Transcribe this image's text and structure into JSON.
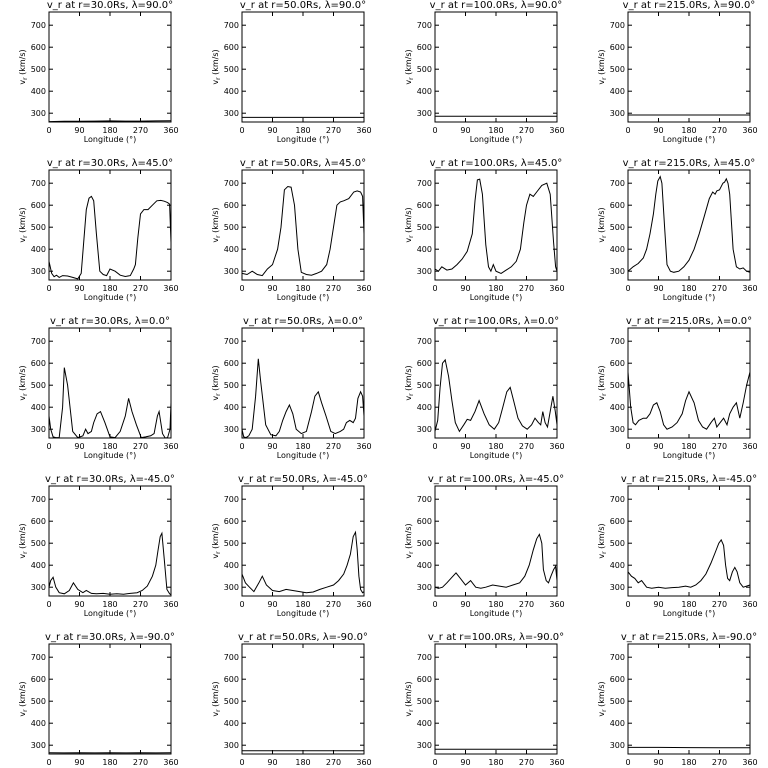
{
  "figure": {
    "xlabel": "Longitude (°)",
    "ylabel": "v",
    "ylabel_sub": "r",
    "ylabel_units": "(km/s)",
    "xticks": [
      "0",
      "90",
      "180",
      "270",
      "360"
    ],
    "yticks": [
      "300",
      "400",
      "500",
      "600",
      "700"
    ]
  },
  "chart_data": [
    {
      "type": "line",
      "title": "v_r at r=30.0Rs, λ=90.0°",
      "ylim": [
        260,
        760
      ],
      "xlim": [
        0,
        360
      ],
      "x": [
        0,
        45,
        90,
        135,
        180,
        225,
        270,
        315,
        360
      ],
      "values": [
        262,
        263,
        263,
        264,
        265,
        264,
        264,
        265,
        266
      ]
    },
    {
      "type": "line",
      "title": "v_r at r=50.0Rs, λ=90.0°",
      "ylim": [
        260,
        760
      ],
      "xlim": [
        0,
        360
      ],
      "x": [
        0,
        90,
        180,
        270,
        360
      ],
      "values": [
        281,
        281,
        281,
        281,
        281
      ]
    },
    {
      "type": "line",
      "title": "v_r at r=100.0Rs, λ=90.0°",
      "ylim": [
        260,
        760
      ],
      "xlim": [
        0,
        360
      ],
      "x": [
        0,
        90,
        180,
        270,
        360
      ],
      "values": [
        286,
        286,
        286,
        286,
        286
      ]
    },
    {
      "type": "line",
      "title": "v_r at r=215.0Rs, λ=90.0°",
      "ylim": [
        260,
        760
      ],
      "xlim": [
        0,
        360
      ],
      "x": [
        0,
        90,
        180,
        270,
        360
      ],
      "values": [
        292,
        292,
        292,
        292,
        292
      ]
    },
    {
      "type": "line",
      "title": "v_r at r=30.0Rs, λ=45.0°",
      "ylim": [
        260,
        760
      ],
      "xlim": [
        0,
        360
      ],
      "x": [
        0,
        8,
        15,
        22,
        30,
        40,
        55,
        70,
        85,
        95,
        110,
        118,
        125,
        132,
        140,
        150,
        160,
        170,
        180,
        195,
        210,
        225,
        240,
        250,
        255,
        262,
        270,
        280,
        292,
        305,
        318,
        330,
        340,
        350,
        356,
        360
      ],
      "values": [
        345,
        290,
        275,
        282,
        272,
        280,
        278,
        272,
        265,
        290,
        580,
        632,
        640,
        620,
        470,
        300,
        285,
        280,
        310,
        300,
        282,
        276,
        280,
        310,
        330,
        450,
        560,
        580,
        580,
        600,
        620,
        622,
        618,
        612,
        605,
        430
      ]
    },
    {
      "type": "line",
      "title": "v_r at r=50.0Rs, λ=45.0°",
      "ylim": [
        260,
        760
      ],
      "xlim": [
        0,
        360
      ],
      "x": [
        0,
        15,
        30,
        45,
        60,
        75,
        90,
        105,
        115,
        125,
        135,
        145,
        155,
        165,
        175,
        190,
        205,
        220,
        235,
        250,
        260,
        270,
        280,
        290,
        300,
        315,
        330,
        340,
        350,
        356,
        360
      ],
      "values": [
        290,
        285,
        300,
        285,
        280,
        310,
        330,
        400,
        500,
        670,
        685,
        682,
        600,
        400,
        295,
        285,
        282,
        290,
        300,
        330,
        400,
        500,
        600,
        615,
        620,
        630,
        660,
        665,
        660,
        640,
        470
      ]
    },
    {
      "type": "line",
      "title": "v_r at r=100.0Rs, λ=45.0°",
      "ylim": [
        260,
        760
      ],
      "xlim": [
        0,
        360
      ],
      "x": [
        0,
        10,
        20,
        35,
        50,
        65,
        80,
        95,
        110,
        118,
        125,
        132,
        140,
        150,
        158,
        165,
        172,
        180,
        195,
        210,
        225,
        240,
        252,
        262,
        270,
        280,
        290,
        300,
        315,
        330,
        340,
        350,
        356,
        360
      ],
      "values": [
        310,
        300,
        320,
        305,
        310,
        330,
        355,
        390,
        470,
        620,
        715,
        718,
        650,
        420,
        320,
        300,
        330,
        300,
        290,
        305,
        320,
        345,
        400,
        520,
        600,
        650,
        640,
        660,
        690,
        700,
        650,
        430,
        320,
        300
      ]
    },
    {
      "type": "line",
      "title": "v_r at r=215.0Rs, λ=45.0°",
      "ylim": [
        260,
        760
      ],
      "xlim": [
        0,
        360
      ],
      "x": [
        0,
        15,
        30,
        45,
        55,
        65,
        75,
        82,
        88,
        95,
        100,
        108,
        115,
        125,
        135,
        150,
        165,
        180,
        195,
        210,
        225,
        240,
        250,
        257,
        262,
        270,
        280,
        285,
        290,
        295,
        300,
        310,
        320,
        330,
        340,
        350,
        360
      ],
      "values": [
        300,
        320,
        335,
        360,
        400,
        470,
        560,
        650,
        710,
        730,
        700,
        500,
        330,
        300,
        295,
        300,
        320,
        350,
        400,
        470,
        550,
        630,
        660,
        650,
        665,
        670,
        700,
        705,
        720,
        700,
        650,
        400,
        320,
        310,
        315,
        300,
        295
      ]
    },
    {
      "type": "line",
      "title": "v_r at r=30.0Rs, λ=0.0°",
      "ylim": [
        260,
        760
      ],
      "xlim": [
        0,
        360
      ],
      "x": [
        0,
        5,
        12,
        20,
        30,
        40,
        45,
        55,
        70,
        85,
        100,
        108,
        115,
        125,
        132,
        142,
        152,
        165,
        180,
        195,
        210,
        225,
        235,
        245,
        258,
        272,
        285,
        300,
        310,
        320,
        325,
        330,
        335,
        343,
        350,
        357,
        360
      ],
      "values": [
        360,
        300,
        265,
        262,
        262,
        400,
        580,
        500,
        290,
        262,
        270,
        300,
        280,
        290,
        330,
        370,
        380,
        330,
        265,
        262,
        290,
        360,
        440,
        380,
        320,
        262,
        265,
        270,
        280,
        360,
        380,
        330,
        280,
        260,
        262,
        300,
        420
      ]
    },
    {
      "type": "line",
      "title": "v_r at r=50.0Rs, λ=0.0°",
      "ylim": [
        260,
        760
      ],
      "xlim": [
        0,
        360
      ],
      "x": [
        0,
        5,
        12,
        20,
        30,
        40,
        48,
        55,
        70,
        85,
        100,
        110,
        120,
        130,
        140,
        150,
        160,
        175,
        190,
        205,
        215,
        225,
        235,
        248,
        262,
        275,
        290,
        300,
        308,
        318,
        328,
        335,
        342,
        350,
        356,
        360
      ],
      "values": [
        300,
        265,
        262,
        270,
        300,
        450,
        620,
        520,
        320,
        275,
        270,
        290,
        340,
        380,
        410,
        370,
        300,
        280,
        290,
        380,
        450,
        470,
        420,
        360,
        290,
        280,
        290,
        300,
        330,
        340,
        330,
        350,
        440,
        470,
        450,
        360
      ]
    },
    {
      "type": "line",
      "title": "v_r at r=100.0Rs, λ=0.0°",
      "ylim": [
        260,
        760
      ],
      "xlim": [
        0,
        360
      ],
      "x": [
        0,
        8,
        15,
        22,
        30,
        40,
        50,
        60,
        72,
        85,
        95,
        105,
        118,
        130,
        145,
        160,
        175,
        188,
        200,
        212,
        222,
        232,
        245,
        258,
        272,
        285,
        295,
        305,
        312,
        318,
        325,
        332,
        340,
        348,
        355,
        360
      ],
      "values": [
        290,
        340,
        490,
        600,
        615,
        540,
        430,
        330,
        290,
        320,
        345,
        340,
        380,
        430,
        370,
        320,
        300,
        330,
        400,
        470,
        490,
        430,
        350,
        315,
        300,
        320,
        350,
        330,
        320,
        380,
        330,
        310,
        380,
        450,
        380,
        320
      ]
    },
    {
      "type": "line",
      "title": "v_r at r=215.0Rs, λ=0.0°",
      "ylim": [
        260,
        760
      ],
      "xlim": [
        0,
        360
      ],
      "x": [
        0,
        8,
        15,
        22,
        32,
        45,
        55,
        65,
        75,
        85,
        95,
        105,
        115,
        130,
        145,
        160,
        170,
        180,
        195,
        208,
        220,
        232,
        245,
        255,
        262,
        272,
        282,
        292,
        300,
        310,
        320,
        330,
        340,
        350,
        360
      ],
      "values": [
        560,
        400,
        330,
        320,
        340,
        350,
        350,
        370,
        410,
        420,
        380,
        320,
        300,
        310,
        330,
        370,
        430,
        470,
        420,
        340,
        310,
        300,
        330,
        350,
        310,
        330,
        350,
        320,
        370,
        400,
        420,
        350,
        420,
        500,
        560
      ]
    },
    {
      "type": "line",
      "title": "v_r at r=30.0Rs, λ=-45.0°",
      "ylim": [
        260,
        760
      ],
      "xlim": [
        0,
        360
      ],
      "x": [
        0,
        5,
        12,
        20,
        30,
        45,
        60,
        72,
        85,
        100,
        110,
        125,
        140,
        160,
        180,
        200,
        220,
        240,
        260,
        275,
        290,
        305,
        315,
        322,
        328,
        333,
        340,
        348,
        356,
        360
      ],
      "values": [
        300,
        330,
        345,
        300,
        275,
        270,
        285,
        320,
        290,
        275,
        285,
        272,
        270,
        272,
        268,
        270,
        268,
        272,
        275,
        285,
        305,
        350,
        400,
        470,
        530,
        545,
        430,
        290,
        270,
        265
      ]
    },
    {
      "type": "line",
      "title": "v_r at r=50.0Rs, λ=-45.0°",
      "ylim": [
        260,
        760
      ],
      "xlim": [
        0,
        360
      ],
      "x": [
        0,
        10,
        22,
        35,
        50,
        60,
        72,
        90,
        110,
        130,
        150,
        170,
        190,
        210,
        230,
        250,
        270,
        285,
        300,
        310,
        320,
        328,
        335,
        340,
        345,
        350,
        356,
        360
      ],
      "values": [
        360,
        320,
        300,
        280,
        320,
        350,
        310,
        285,
        280,
        290,
        285,
        280,
        275,
        278,
        290,
        300,
        310,
        330,
        360,
        400,
        450,
        530,
        550,
        470,
        350,
        290,
        275,
        280
      ]
    },
    {
      "type": "line",
      "title": "v_r at r=100.0Rs, λ=-45.0°",
      "ylim": [
        260,
        760
      ],
      "xlim": [
        0,
        360
      ],
      "x": [
        0,
        10,
        22,
        35,
        50,
        62,
        75,
        90,
        105,
        120,
        135,
        150,
        170,
        190,
        210,
        230,
        250,
        265,
        278,
        290,
        300,
        308,
        315,
        320,
        328,
        335,
        342,
        350,
        356,
        360
      ],
      "values": [
        300,
        295,
        300,
        320,
        345,
        365,
        340,
        310,
        330,
        300,
        295,
        300,
        310,
        305,
        300,
        310,
        320,
        350,
        400,
        470,
        520,
        540,
        500,
        380,
        330,
        320,
        350,
        380,
        395,
        330
      ]
    },
    {
      "type": "line",
      "title": "v_r at r=215.0Rs, λ=-45.0°",
      "ylim": [
        260,
        760
      ],
      "xlim": [
        0,
        360
      ],
      "x": [
        0,
        10,
        20,
        30,
        40,
        55,
        70,
        90,
        110,
        130,
        150,
        170,
        185,
        200,
        215,
        230,
        245,
        258,
        268,
        275,
        282,
        288,
        294,
        300,
        308,
        315,
        322,
        330,
        340,
        350,
        360
      ],
      "values": [
        370,
        350,
        340,
        320,
        330,
        300,
        295,
        300,
        295,
        298,
        300,
        305,
        300,
        310,
        330,
        360,
        410,
        460,
        500,
        515,
        490,
        400,
        340,
        330,
        370,
        390,
        370,
        320,
        300,
        305,
        310
      ]
    },
    {
      "type": "line",
      "title": "v_r at r=30.0Rs, λ=-90.0°",
      "ylim": [
        260,
        760
      ],
      "xlim": [
        0,
        360
      ],
      "x": [
        0,
        45,
        90,
        135,
        180,
        225,
        270,
        315,
        360
      ],
      "values": [
        266,
        265,
        266,
        265,
        266,
        265,
        266,
        265,
        266
      ]
    },
    {
      "type": "line",
      "title": "v_r at r=50.0Rs, λ=-90.0°",
      "ylim": [
        260,
        760
      ],
      "xlim": [
        0,
        360
      ],
      "x": [
        0,
        90,
        180,
        270,
        360
      ],
      "values": [
        275,
        275,
        275,
        275,
        275
      ]
    },
    {
      "type": "line",
      "title": "v_r at r=100.0Rs, λ=-90.0°",
      "ylim": [
        260,
        760
      ],
      "xlim": [
        0,
        360
      ],
      "x": [
        0,
        90,
        180,
        270,
        360
      ],
      "values": [
        282,
        282,
        282,
        282,
        282
      ]
    },
    {
      "type": "line",
      "title": "v_r at r=215.0Rs, λ=-90.0°",
      "ylim": [
        260,
        760
      ],
      "xlim": [
        0,
        360
      ],
      "x": [
        0,
        90,
        180,
        270,
        360
      ],
      "values": [
        290,
        290,
        289,
        288,
        288
      ]
    }
  ]
}
